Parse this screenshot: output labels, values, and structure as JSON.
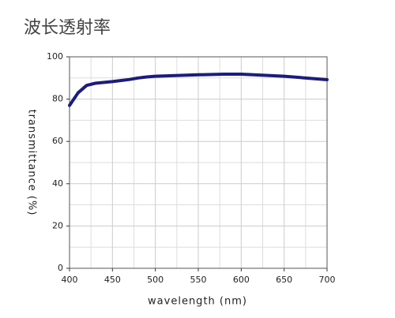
{
  "chart_data": {
    "type": "line",
    "title": "波长透射率",
    "x_label": "wavelength (nm)",
    "y_label": "transmittance (%)",
    "x": [
      400,
      410,
      420,
      430,
      450,
      470,
      480,
      490,
      500,
      550,
      580,
      600,
      650,
      700
    ],
    "series": [
      {
        "name": "transmittance",
        "color": "#1c1c7e",
        "values": [
          77,
          83,
          86.5,
          87.5,
          88.3,
          89.3,
          90,
          90.5,
          90.8,
          91.5,
          91.8,
          91.8,
          90.8,
          89.2
        ]
      }
    ],
    "xlim": [
      400,
      700
    ],
    "xticks": [
      400,
      450,
      500,
      550,
      600,
      650,
      700
    ],
    "ylim": [
      0,
      100
    ],
    "yticks": [
      0,
      20,
      40,
      60,
      80,
      100
    ],
    "x_minor_grid": [
      425,
      475,
      525,
      575,
      625,
      675
    ],
    "y_minor_grid": [
      10,
      30,
      50,
      70,
      90
    ],
    "grid": true
  }
}
